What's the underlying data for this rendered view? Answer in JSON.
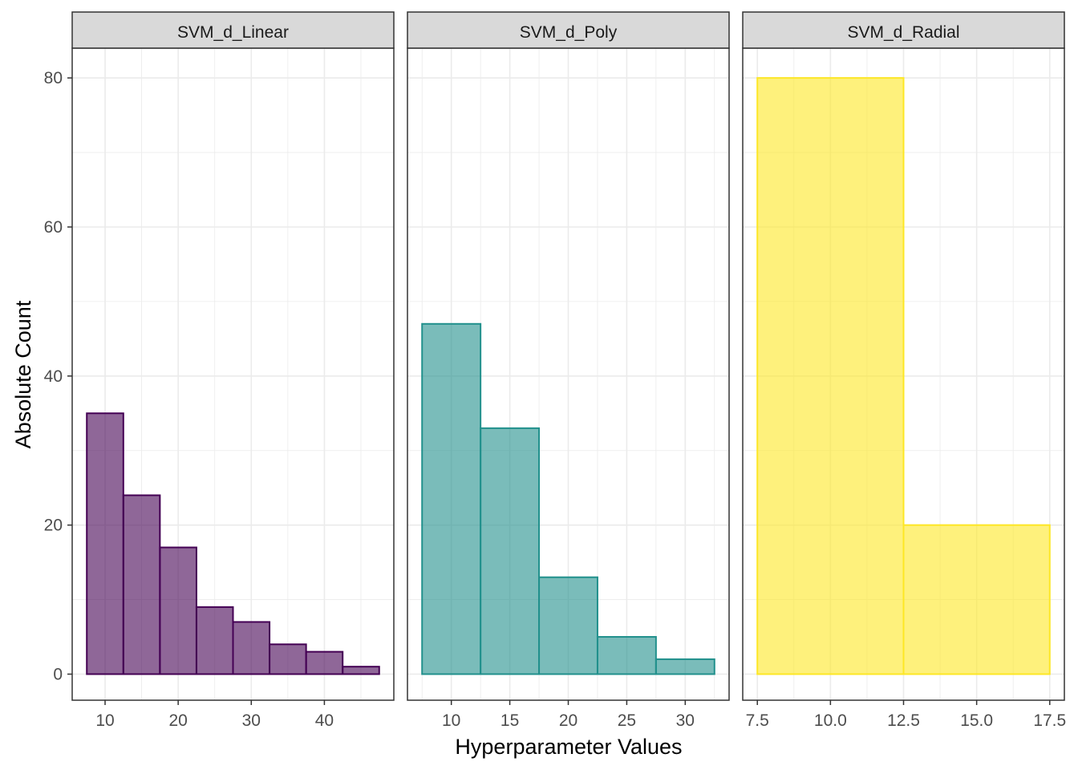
{
  "chart_data": {
    "type": "bar",
    "subtype": "faceted-histogram",
    "xlabel": "Hyperparameter Values",
    "ylabel": "Absolute Count",
    "ylim": [
      -3.5,
      84
    ],
    "y_ticks": [
      0,
      20,
      40,
      60,
      80
    ],
    "grid": true,
    "theme": "black-and-white",
    "facets": [
      {
        "title": "SVM_d_Linear",
        "color": "#440154",
        "fill": "#440154",
        "fill_opacity": 0.6,
        "xlim": [
          5.5,
          49.5
        ],
        "x_ticks": [
          10,
          20,
          30,
          40
        ],
        "bins": [
          {
            "x0": 7.5,
            "x1": 12.5,
            "count": 35
          },
          {
            "x0": 12.5,
            "x1": 17.5,
            "count": 24
          },
          {
            "x0": 17.5,
            "x1": 22.5,
            "count": 17
          },
          {
            "x0": 22.5,
            "x1": 27.5,
            "count": 9
          },
          {
            "x0": 27.5,
            "x1": 32.5,
            "count": 7
          },
          {
            "x0": 32.5,
            "x1": 37.5,
            "count": 4
          },
          {
            "x0": 37.5,
            "x1": 42.5,
            "count": 3
          },
          {
            "x0": 42.5,
            "x1": 47.5,
            "count": 1
          }
        ]
      },
      {
        "title": "SVM_d_Poly",
        "color": "#21908C",
        "fill": "#21908C",
        "fill_opacity": 0.6,
        "xlim": [
          6.25,
          33.75
        ],
        "x_ticks": [
          10,
          15,
          20,
          25,
          30
        ],
        "bins": [
          {
            "x0": 7.5,
            "x1": 12.5,
            "count": 47
          },
          {
            "x0": 12.5,
            "x1": 17.5,
            "count": 33
          },
          {
            "x0": 17.5,
            "x1": 22.5,
            "count": 13
          },
          {
            "x0": 22.5,
            "x1": 27.5,
            "count": 5
          },
          {
            "x0": 27.5,
            "x1": 32.5,
            "count": 2
          }
        ]
      },
      {
        "title": "SVM_d_Radial",
        "color": "#FDE725",
        "fill": "#FDE725",
        "fill_opacity": 0.6,
        "xlim": [
          7.0,
          18.0
        ],
        "x_ticks": [
          7.5,
          10.0,
          12.5,
          15.0,
          17.5
        ],
        "x_tick_labels": [
          "7.5",
          "10.0",
          "12.5",
          "15.0",
          "17.5"
        ],
        "bins": [
          {
            "x0": 7.5,
            "x1": 12.5,
            "count": 80
          },
          {
            "x0": 12.5,
            "x1": 17.5,
            "count": 20
          }
        ]
      }
    ]
  }
}
